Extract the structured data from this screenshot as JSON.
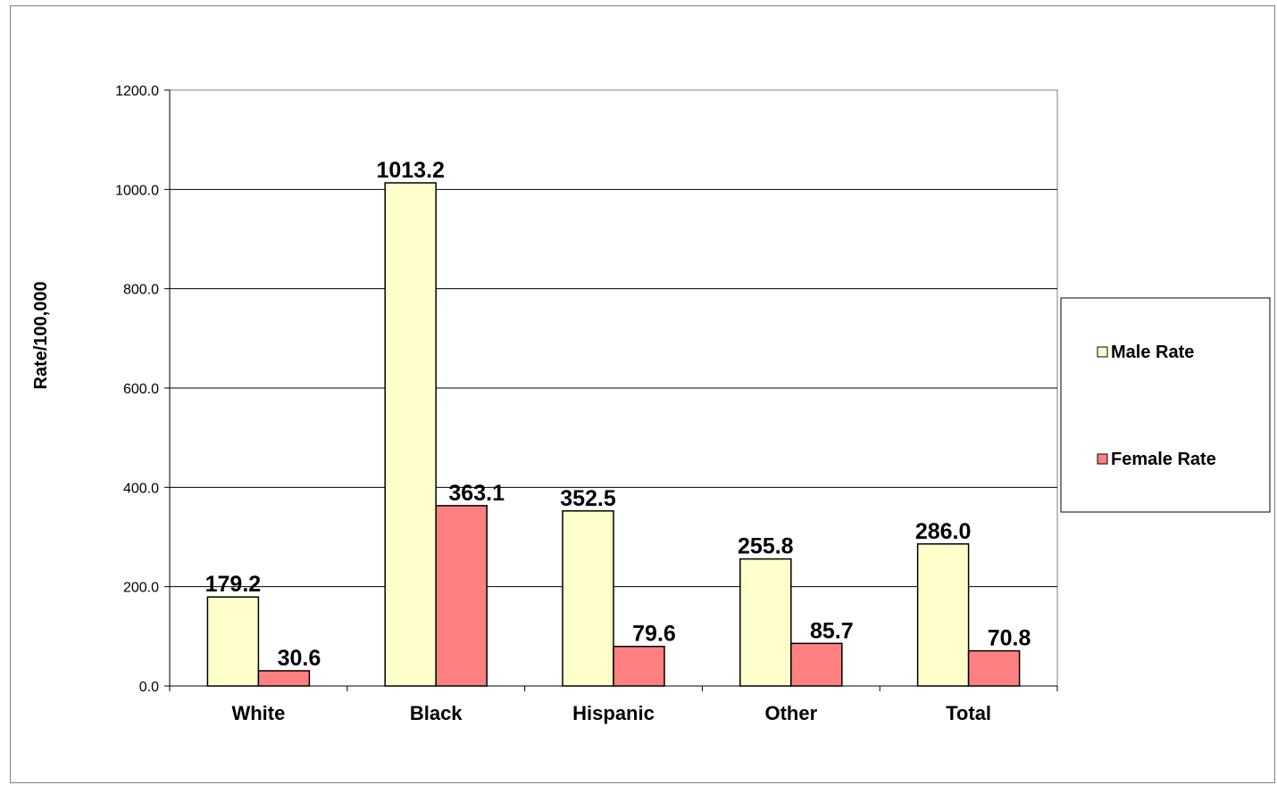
{
  "chart_data": {
    "type": "bar",
    "title": "",
    "xlabel": "",
    "ylabel": "Rate/100,000",
    "ylim": [
      0,
      1200
    ],
    "yticks": [
      "0.0",
      "200.0",
      "400.0",
      "600.0",
      "800.0",
      "1000.0",
      "1200.0"
    ],
    "ytick_values": [
      0,
      200,
      400,
      600,
      800,
      1000,
      1200
    ],
    "categories": [
      "White",
      "Black",
      "Hispanic",
      "Other",
      "Total"
    ],
    "series": [
      {
        "name": "Male Rate",
        "color": "#FFFFCC",
        "values": [
          179.2,
          1013.2,
          352.5,
          255.8,
          286.0
        ],
        "labels": [
          "179.2",
          "1013.2",
          "352.5",
          "255.8",
          "286.0"
        ]
      },
      {
        "name": "Female Rate",
        "color": "#FF8080",
        "values": [
          30.6,
          363.1,
          79.6,
          85.7,
          70.8
        ],
        "labels": [
          "30.6",
          "363.1",
          "79.6",
          "85.7",
          "70.8"
        ]
      }
    ],
    "grid": true,
    "legend": "right"
  }
}
